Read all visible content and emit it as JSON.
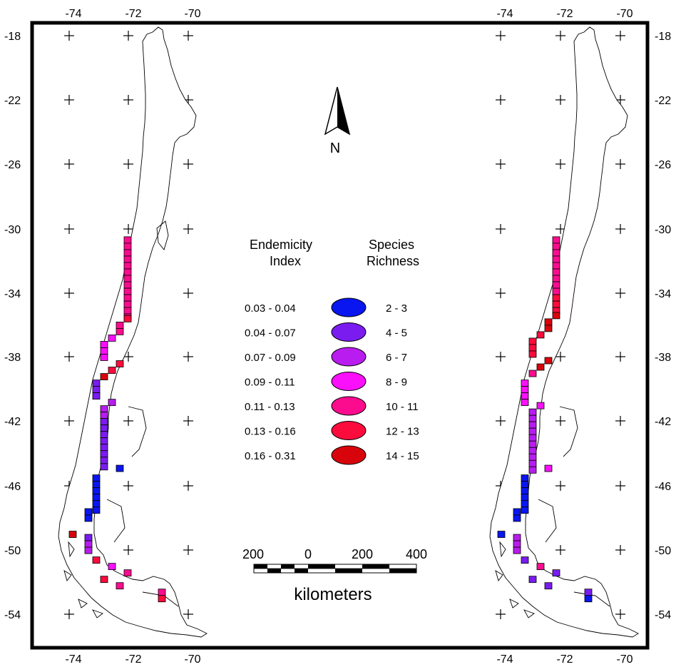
{
  "axes": {
    "top_left": [
      "-74",
      "-72",
      "-70"
    ],
    "top_right": [
      "-74",
      "-72",
      "-70"
    ],
    "bottom_left": [
      "-74",
      "-72",
      "-70"
    ],
    "bottom_right": [
      "-74",
      "-72",
      "-70"
    ],
    "lat_left": [
      "-18",
      "-22",
      "-26",
      "-30",
      "-34",
      "-38",
      "-42",
      "-46",
      "-50",
      "-54"
    ],
    "lat_right": [
      "-18",
      "-22",
      "-26",
      "-30",
      "-34",
      "-38",
      "-42",
      "-46",
      "-50",
      "-54"
    ]
  },
  "north_arrow": {
    "label": "N"
  },
  "legend": {
    "endemicity_title_1": "Endemicity",
    "endemicity_title_2": "Index",
    "richness_title_1": "Species",
    "richness_title_2": "Richness",
    "classes": [
      {
        "endemicity": "0.03 - 0.04",
        "richness": "2 - 3",
        "color": "#0a16f0"
      },
      {
        "endemicity": "0.04 - 0.07",
        "richness": "4 - 5",
        "color": "#7a1cf0"
      },
      {
        "endemicity": "0.07 - 0.09",
        "richness": "6 - 7",
        "color": "#b81cee"
      },
      {
        "endemicity": "0.09 - 0.11",
        "richness": "8 - 9",
        "color": "#fb10fb"
      },
      {
        "endemicity": "0.11 - 0.13",
        "richness": "10 - 11",
        "color": "#fb0c8e"
      },
      {
        "endemicity": "0.13 - 0.16",
        "richness": "12 - 13",
        "color": "#fb0c3c"
      },
      {
        "endemicity": "0.16 - 0.31",
        "richness": "14 - 15",
        "color": "#d8040c"
      }
    ]
  },
  "scale_bar": {
    "ticks": [
      "200",
      "0",
      "200",
      "400"
    ],
    "unit": "kilometers"
  },
  "left_map_cells": [
    {
      "lat": -31.0,
      "cls": 4
    },
    {
      "lat": -31.5,
      "cls": 4
    },
    {
      "lat": -32.0,
      "cls": 4
    },
    {
      "lat": -32.5,
      "cls": 4
    },
    {
      "lat": -33.0,
      "cls": 4
    },
    {
      "lat": -33.5,
      "cls": 4
    },
    {
      "lat": -34.0,
      "cls": 4
    },
    {
      "lat": -34.5,
      "cls": 4
    },
    {
      "lat": -35.0,
      "cls": 5
    }
  ],
  "right_map_cells": [
    {
      "lat": -31.0,
      "cls": 4
    },
    {
      "lat": -31.5,
      "cls": 4
    },
    {
      "lat": -32.0,
      "cls": 4
    },
    {
      "lat": -32.5,
      "cls": 4
    },
    {
      "lat": -33.0,
      "cls": 4
    },
    {
      "lat": -33.5,
      "cls": 4
    },
    {
      "lat": -34.0,
      "cls": 4
    },
    {
      "lat": -34.5,
      "cls": 5
    },
    {
      "lat": -35.0,
      "cls": 6
    }
  ]
}
